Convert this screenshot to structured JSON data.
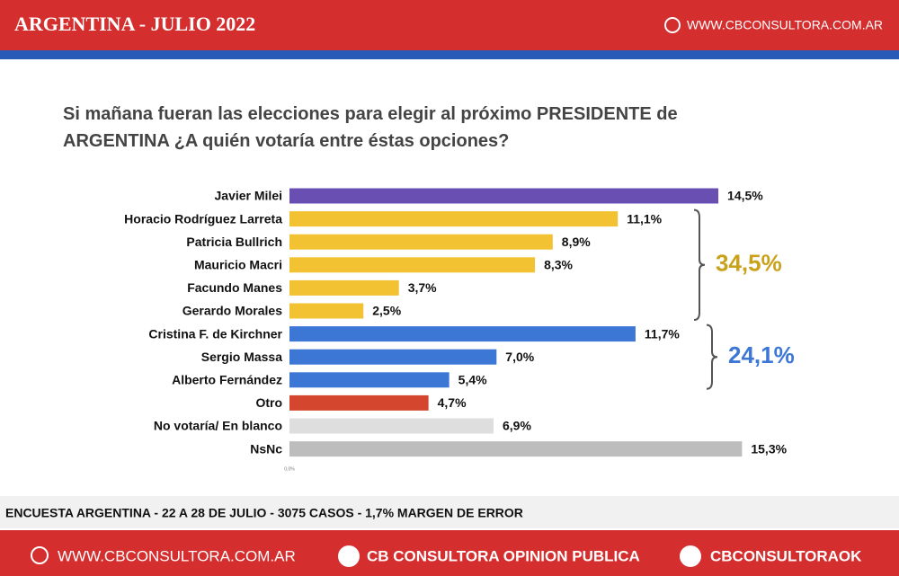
{
  "header": {
    "title": "ARGENTINA - JULIO 2022",
    "url": "WWW.CBCONSULTORA.COM.AR"
  },
  "chart_data": {
    "type": "bar",
    "orientation": "horizontal",
    "title": "Si mañana fueran las elecciones para elegir al próximo PRESIDENTE de ARGENTINA ¿A quién votaría entre éstas opciones?",
    "categories": [
      "Javier Milei",
      "Horacio Rodríguez Larreta",
      "Patricia Bullrich",
      "Mauricio Macri",
      "Facundo Manes",
      "Gerardo Morales",
      "Cristina F. de Kirchner",
      "Sergio Massa",
      "Alberto Fernández",
      "Otro",
      "No votaría/ En blanco",
      "NsNc"
    ],
    "values": [
      14.5,
      11.1,
      8.9,
      8.3,
      3.7,
      2.5,
      11.7,
      7.0,
      5.4,
      4.7,
      6.9,
      15.3
    ],
    "value_labels": [
      "14,5%",
      "11,1%",
      "8,9%",
      "8,3%",
      "3,7%",
      "2,5%",
      "11,7%",
      "7,0%",
      "5,4%",
      "4,7%",
      "6,9%",
      "15,3%"
    ],
    "colors": [
      "#6a4fb3",
      "#f2c232",
      "#f2c232",
      "#f2c232",
      "#f2c232",
      "#f2c232",
      "#3d77d6",
      "#3d77d6",
      "#3d77d6",
      "#d5462e",
      "#dedede",
      "#bdbdbd"
    ],
    "xlim": [
      0,
      20
    ],
    "xticks": [
      {
        "value": 0,
        "label": "0,0%"
      }
    ],
    "annotations": [
      {
        "value": 34.5,
        "label": "34,5%",
        "color": "#c9a21a"
      },
      {
        "value": 24.1,
        "label": "24,1%",
        "color": "#3d77d6"
      }
    ]
  },
  "footer": {
    "note": "ENCUESTA ARGENTINA - 22 A 28  DE JULIO - 3075 CASOS - 1,7% MARGEN DE ERROR",
    "web": "WWW.CBCONSULTORA.COM.AR",
    "facebook": "CB CONSULTORA OPINION PUBLICA",
    "twitter": "CBCONSULTORAOK"
  }
}
